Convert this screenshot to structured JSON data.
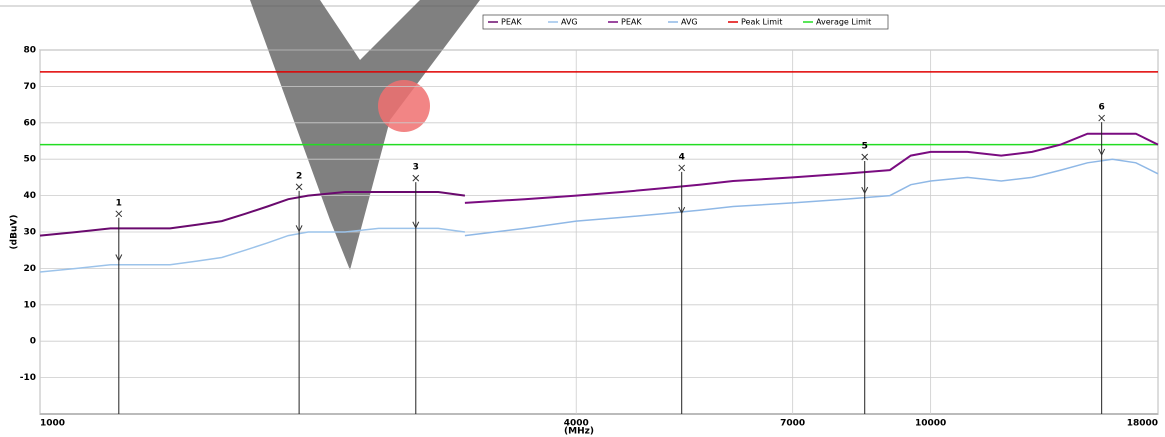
{
  "chart_data": {
    "type": "line",
    "x_label": "(MHz)",
    "y_label": "(dBuV)",
    "xscale": "log",
    "xlim": [
      1000,
      18000
    ],
    "xticks": [
      1000,
      4000,
      7000,
      10000,
      18000
    ],
    "ylim": [
      -20,
      80
    ],
    "yticks": [
      -10,
      0,
      10,
      20,
      30,
      40,
      50,
      60,
      70,
      80
    ],
    "grid": true,
    "legend": "top",
    "series": [
      {
        "name": "PEAK",
        "color": "#6a0a6e",
        "x": [
          1000,
          1100,
          1200,
          1300,
          1400,
          1500,
          1600,
          1700,
          1800,
          1900,
          2000,
          2200,
          2400,
          2600,
          2800,
          3000
        ],
        "values": [
          29,
          30,
          31,
          31,
          31,
          32,
          33,
          35,
          37,
          39,
          40,
          41,
          41,
          41,
          41,
          40
        ]
      },
      {
        "name": "AVG",
        "color": "#9cc3ea",
        "x": [
          1000,
          1100,
          1200,
          1300,
          1400,
          1500,
          1600,
          1700,
          1800,
          1900,
          2000,
          2200,
          2400,
          2600,
          2800,
          3000
        ],
        "values": [
          19,
          20,
          21,
          21,
          21,
          22,
          23,
          25,
          27,
          29,
          30,
          30,
          31,
          31,
          31,
          30
        ]
      },
      {
        "name": "PEAK",
        "color": "#7a0c80",
        "x": [
          3000,
          3500,
          4000,
          4500,
          5000,
          5500,
          6000,
          7000,
          8000,
          9000,
          9500,
          10000,
          11000,
          12000,
          13000,
          14000,
          15000,
          16000,
          17000,
          18000
        ],
        "values": [
          38,
          39,
          40,
          41,
          42,
          43,
          44,
          45,
          46,
          47,
          51,
          52,
          52,
          51,
          52,
          54,
          57,
          57,
          57,
          54
        ]
      },
      {
        "name": "AVG",
        "color": "#8fb8e6",
        "x": [
          3000,
          3500,
          4000,
          4500,
          5000,
          5500,
          6000,
          7000,
          8000,
          9000,
          9500,
          10000,
          11000,
          12000,
          13000,
          14000,
          15000,
          16000,
          17000,
          18000
        ],
        "values": [
          29,
          31,
          33,
          34,
          35,
          36,
          37,
          38,
          39,
          40,
          43,
          44,
          45,
          44,
          45,
          47,
          49,
          50,
          49,
          46
        ]
      }
    ],
    "limits": [
      {
        "name": "Peak Limit",
        "color": "#e00000",
        "value": 74
      },
      {
        "name": "Average Limit",
        "color": "#22dd22",
        "value": 54
      }
    ],
    "markers": [
      {
        "label": "1",
        "x": 1226,
        "peak": 35,
        "avg": 23
      },
      {
        "label": "2",
        "x": 1954,
        "peak": 42.4,
        "avg": 31
      },
      {
        "label": "3",
        "x": 2642,
        "peak": 44.8,
        "avg": 32
      },
      {
        "label": "4",
        "x": 5254,
        "peak": 47.6,
        "avg": 36
      },
      {
        "label": "5",
        "x": 8433,
        "peak": 50.6,
        "avg": 41.5
      },
      {
        "label": "6",
        "x": 15560,
        "peak": 61.3,
        "avg": 52
      }
    ]
  }
}
